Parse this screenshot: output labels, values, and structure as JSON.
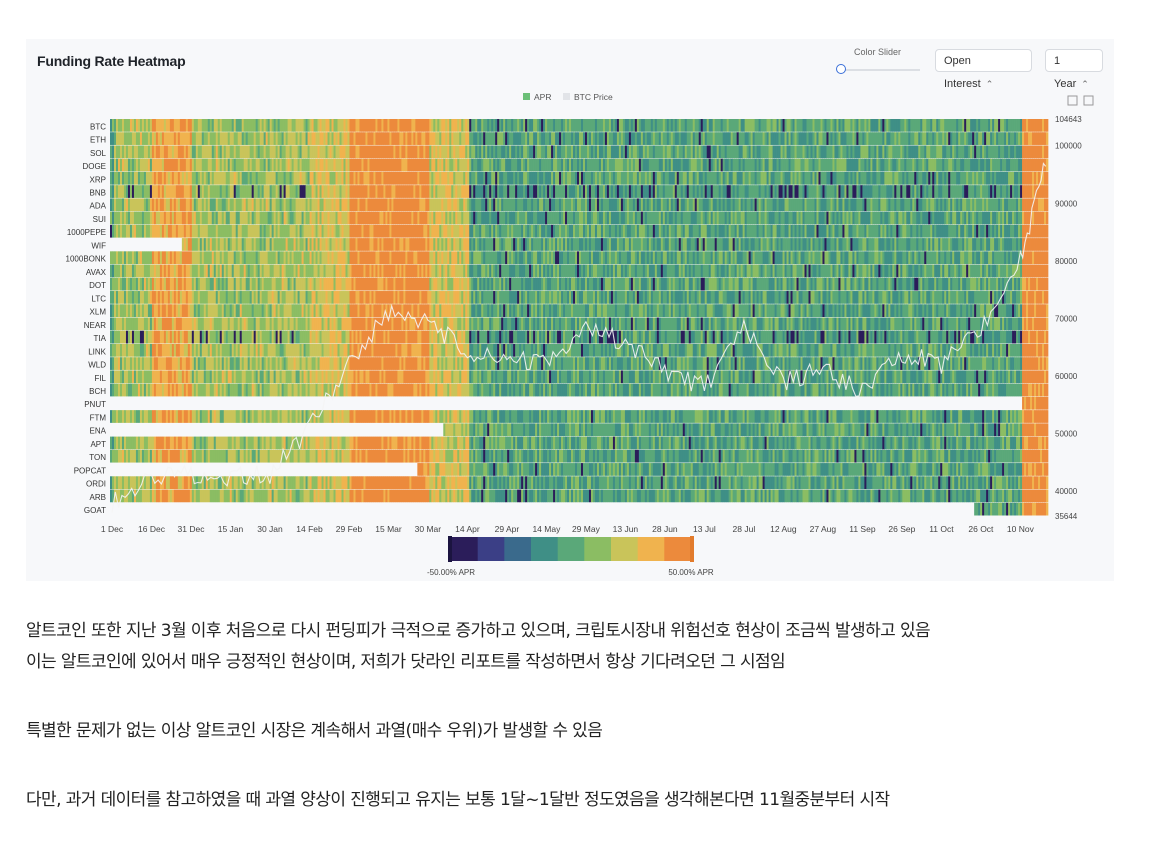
{
  "chart_data": {
    "type": "heatmap",
    "title": "Funding Rate Heatmap",
    "legend": [
      {
        "label": "APR",
        "color": "#5cb85c"
      },
      {
        "label": "BTC Price",
        "color": "#dddddd"
      }
    ],
    "rows": [
      "BTC",
      "ETH",
      "SOL",
      "DOGE",
      "XRP",
      "BNB",
      "ADA",
      "SUI",
      "1000PEPE",
      "WIF",
      "1000BONK",
      "AVAX",
      "DOT",
      "LTC",
      "XLM",
      "NEAR",
      "TIA",
      "LINK",
      "WLD",
      "FIL",
      "BCH",
      "PNUT",
      "FTM",
      "ENA",
      "APT",
      "TON",
      "POPCAT",
      "ORDI",
      "ARB",
      "GOAT"
    ],
    "x_ticks": [
      "1 Dec",
      "16 Dec",
      "31 Dec",
      "15 Jan",
      "30 Jan",
      "14 Feb",
      "29 Feb",
      "15 Mar",
      "30 Mar",
      "14 Apr",
      "29 Apr",
      "14 May",
      "29 May",
      "13 Jun",
      "28 Jun",
      "13 Jul",
      "28 Jul",
      "12 Aug",
      "27 Aug",
      "11 Sep",
      "26 Sep",
      "11 Oct",
      "26 Oct",
      "10 Nov"
    ],
    "y2_ticks": [
      "104643",
      "100000",
      "90000",
      "80000",
      "70000",
      "60000",
      "50000",
      "40000",
      "35644"
    ],
    "y2_range": [
      35644,
      104643
    ],
    "colorbar": {
      "min_label": "-50.00% APR",
      "max_label": "50.00% APR",
      "min": -50,
      "max": 50,
      "colors": [
        "#2b1d5a",
        "#3b3f86",
        "#3a6a8c",
        "#3f8f86",
        "#5aa879",
        "#8bbd63",
        "#c9c45a",
        "#f0b34e",
        "#ec8a3c"
      ]
    },
    "apr_periods": [
      {
        "from": "1 Dec",
        "to": "16 Dec",
        "level": "positive-moderate"
      },
      {
        "from": "16 Dec",
        "to": "31 Dec",
        "level": "high"
      },
      {
        "from": "31 Dec",
        "to": "14 Feb",
        "level": "positive-moderate"
      },
      {
        "from": "14 Feb",
        "to": "29 Feb",
        "level": "positive"
      },
      {
        "from": "29 Feb",
        "to": "30 Mar",
        "level": "very-high"
      },
      {
        "from": "30 Mar",
        "to": "14 Apr",
        "level": "positive"
      },
      {
        "from": "14 Apr",
        "to": "10 Nov",
        "level": "neutral"
      },
      {
        "from": "10 Nov",
        "to": "end",
        "level": "very-high"
      }
    ],
    "btc_price": [
      {
        "x": "1 Dec",
        "y": 38000
      },
      {
        "x": "16 Dec",
        "y": 42000
      },
      {
        "x": "31 Dec",
        "y": 43000
      },
      {
        "x": "15 Jan",
        "y": 42500
      },
      {
        "x": "30 Jan",
        "y": 43000
      },
      {
        "x": "14 Feb",
        "y": 51000
      },
      {
        "x": "29 Feb",
        "y": 62000
      },
      {
        "x": "15 Mar",
        "y": 71000
      },
      {
        "x": "30 Mar",
        "y": 69500
      },
      {
        "x": "14 Apr",
        "y": 64000
      },
      {
        "x": "29 Apr",
        "y": 63000
      },
      {
        "x": "14 May",
        "y": 62000
      },
      {
        "x": "29 May",
        "y": 68000
      },
      {
        "x": "13 Jun",
        "y": 66000
      },
      {
        "x": "28 Jun",
        "y": 61000
      },
      {
        "x": "13 Jul",
        "y": 58000
      },
      {
        "x": "28 Jul",
        "y": 68000
      },
      {
        "x": "12 Aug",
        "y": 59000
      },
      {
        "x": "27 Aug",
        "y": 61000
      },
      {
        "x": "11 Sep",
        "y": 57000
      },
      {
        "x": "26 Sep",
        "y": 64000
      },
      {
        "x": "11 Oct",
        "y": 62000
      },
      {
        "x": "26 Oct",
        "y": 68000
      },
      {
        "x": "10 Nov",
        "y": 80000
      },
      {
        "x": "end",
        "y": 99000
      }
    ]
  },
  "controls": {
    "color_slider_label": "Color Slider",
    "metric_select": "Open Interest",
    "range_select": "1 Year"
  },
  "article": {
    "para1": "알트코인 또한 지난 3월 이후 처음으로 다시 펀딩피가 극적으로 증가하고 있으며, 크립토시장내 위험선호 현상이 조금씩 발생하고 있음",
    "para2": "이는 알트코인에 있어서 매우 긍정적인 현상이며, 저희가 닷라인 리포트를 작성하면서 항상 기다려오던 그 시점임",
    "para3": "특별한 문제가 없는 이상 알트코인 시장은 계속해서 과열(매수 우위)가 발생할 수 있음",
    "para4": "다만, 과거 데이터를 참고하였을 때 과열 양상이 진행되고 유지는 보통 1달~1달반 정도였음을 생각해본다면 11월중분부터 시작"
  }
}
